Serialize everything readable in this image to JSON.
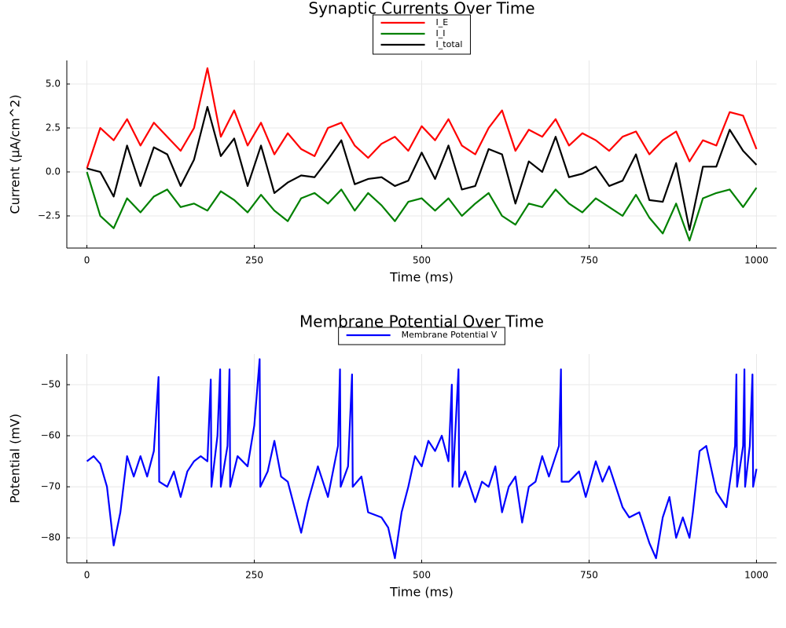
{
  "chart_data": [
    {
      "type": "line",
      "title": "Synaptic Currents Over Time",
      "xlabel": "Time (ms)",
      "ylabel": "Current (μA/cm^2)",
      "x": [
        0,
        20,
        40,
        60,
        80,
        100,
        120,
        140,
        160,
        180,
        200,
        220,
        240,
        260,
        280,
        300,
        320,
        340,
        360,
        380,
        400,
        420,
        440,
        460,
        480,
        500,
        520,
        540,
        560,
        580,
        600,
        620,
        640,
        660,
        680,
        700,
        720,
        740,
        760,
        780,
        800,
        820,
        840,
        860,
        880,
        900,
        920,
        940,
        960,
        980,
        1000
      ],
      "series": [
        {
          "name": "I_E",
          "color": "#ff0000",
          "values": [
            0.2,
            2.5,
            1.8,
            3.0,
            1.5,
            2.8,
            2.0,
            1.2,
            2.5,
            5.9,
            2.0,
            3.5,
            1.5,
            2.8,
            1.0,
            2.2,
            1.3,
            0.9,
            2.5,
            2.8,
            1.5,
            0.8,
            1.6,
            2.0,
            1.2,
            2.6,
            1.8,
            3.0,
            1.5,
            1.0,
            2.5,
            3.5,
            1.2,
            2.4,
            2.0,
            3.0,
            1.5,
            2.2,
            1.8,
            1.2,
            2.0,
            2.3,
            1.0,
            1.8,
            2.3,
            0.6,
            1.8,
            1.5,
            3.4,
            3.2,
            1.3
          ]
        },
        {
          "name": "I_I",
          "color": "#008000",
          "values": [
            0.0,
            -2.5,
            -3.2,
            -1.5,
            -2.3,
            -1.4,
            -1.0,
            -2.0,
            -1.8,
            -2.2,
            -1.1,
            -1.6,
            -2.3,
            -1.3,
            -2.2,
            -2.8,
            -1.5,
            -1.2,
            -1.8,
            -1.0,
            -2.2,
            -1.2,
            -1.9,
            -2.8,
            -1.7,
            -1.5,
            -2.2,
            -1.5,
            -2.5,
            -1.8,
            -1.2,
            -2.5,
            -3.0,
            -1.8,
            -2.0,
            -1.0,
            -1.8,
            -2.3,
            -1.5,
            -2.0,
            -2.5,
            -1.3,
            -2.6,
            -3.5,
            -1.8,
            -3.9,
            -1.5,
            -1.2,
            -1.0,
            -2.0,
            -0.9
          ]
        },
        {
          "name": "I_total",
          "color": "#000000",
          "values": [
            0.2,
            0.0,
            -1.4,
            1.5,
            -0.8,
            1.4,
            1.0,
            -0.8,
            0.7,
            3.7,
            0.9,
            1.9,
            -0.8,
            1.5,
            -1.2,
            -0.6,
            -0.2,
            -0.3,
            0.7,
            1.8,
            -0.7,
            -0.4,
            -0.3,
            -0.8,
            -0.5,
            1.1,
            -0.4,
            1.5,
            -1.0,
            -0.8,
            1.3,
            1.0,
            -1.8,
            0.6,
            0.0,
            2.0,
            -0.3,
            -0.1,
            0.3,
            -0.8,
            -0.5,
            1.0,
            -1.6,
            -1.7,
            0.5,
            -3.3,
            0.3,
            0.3,
            2.4,
            1.2,
            0.4
          ]
        }
      ],
      "xlim": [
        -30,
        1030
      ],
      "ylim": [
        -4.33,
        6.34
      ],
      "xticks": [
        0,
        250,
        500,
        750,
        1000
      ],
      "yticks": [
        {
          "value": -2.5,
          "label": "−2.5"
        },
        {
          "value": 0,
          "label": "0.0"
        },
        {
          "value": 2.5,
          "label": "2.5"
        },
        {
          "value": 5,
          "label": "5.0"
        }
      ],
      "grid": true,
      "legend": "top"
    },
    {
      "type": "line",
      "title": "Membrane Potential Over Time",
      "xlabel": "Time (ms)",
      "ylabel": "Potential (mV)",
      "x": [
        0,
        10,
        20,
        30,
        40,
        50,
        60,
        70,
        80,
        90,
        100,
        107,
        108,
        120,
        130,
        140,
        150,
        160,
        170,
        180,
        185,
        186,
        195,
        199,
        200,
        210,
        213,
        214,
        225,
        240,
        250,
        258,
        259,
        270,
        280,
        290,
        300,
        310,
        320,
        330,
        345,
        360,
        375,
        378,
        379,
        390,
        396,
        397,
        410,
        420,
        440,
        450,
        460,
        470,
        480,
        490,
        500,
        510,
        520,
        530,
        540,
        545,
        546,
        555,
        556,
        565,
        580,
        590,
        600,
        610,
        620,
        630,
        640,
        650,
        660,
        670,
        680,
        690,
        705,
        708,
        709,
        720,
        735,
        745,
        760,
        770,
        780,
        790,
        800,
        810,
        825,
        840,
        850,
        860,
        870,
        880,
        890,
        900,
        905,
        915,
        925,
        940,
        955,
        968,
        970,
        971,
        980,
        982,
        983,
        990,
        994,
        995,
        1000
      ],
      "series": [
        {
          "name": "Membrane Potential V",
          "color": "#0000ff",
          "values": [
            -65,
            -64,
            -65.5,
            -70,
            -81.5,
            -75,
            -64,
            -68,
            -64,
            -68,
            -63,
            -48.5,
            -69,
            -70,
            -67,
            -72,
            -67,
            -65,
            -64,
            -65,
            -49,
            -70,
            -60,
            -47,
            -70,
            -62,
            -47,
            -70,
            -64,
            -66,
            -58,
            -45,
            -70,
            -67,
            -61,
            -68,
            -69,
            -74,
            -79,
            -73,
            -66,
            -72,
            -62,
            -47,
            -70,
            -66,
            -48,
            -70,
            -68,
            -75,
            -76,
            -78,
            -84,
            -75,
            -70,
            -64,
            -66,
            -61,
            -63,
            -60,
            -65,
            -50,
            -70,
            -47,
            -70,
            -67,
            -73,
            -69,
            -70,
            -66,
            -75,
            -70,
            -68,
            -77,
            -70,
            -69,
            -64,
            -68,
            -62,
            -47,
            -69,
            -69,
            -67,
            -72,
            -65,
            -69,
            -66,
            -70,
            -74,
            -76,
            -75,
            -81,
            -84,
            -76,
            -72,
            -80,
            -76,
            -80,
            -75,
            -63,
            -62,
            -71,
            -74,
            -62,
            -48,
            -70,
            -62,
            -47,
            -70,
            -62,
            -48,
            -70,
            -66.5
          ]
        }
      ],
      "xlim": [
        -30,
        1030
      ],
      "ylim": [
        -84.9,
        -44
      ],
      "xticks": [
        0,
        250,
        500,
        750,
        1000
      ],
      "yticks": [
        {
          "value": -80,
          "label": "−80"
        },
        {
          "value": -70,
          "label": "−70"
        },
        {
          "value": -60,
          "label": "−60"
        },
        {
          "value": -50,
          "label": "−50"
        }
      ],
      "grid": true,
      "legend": "top"
    }
  ]
}
